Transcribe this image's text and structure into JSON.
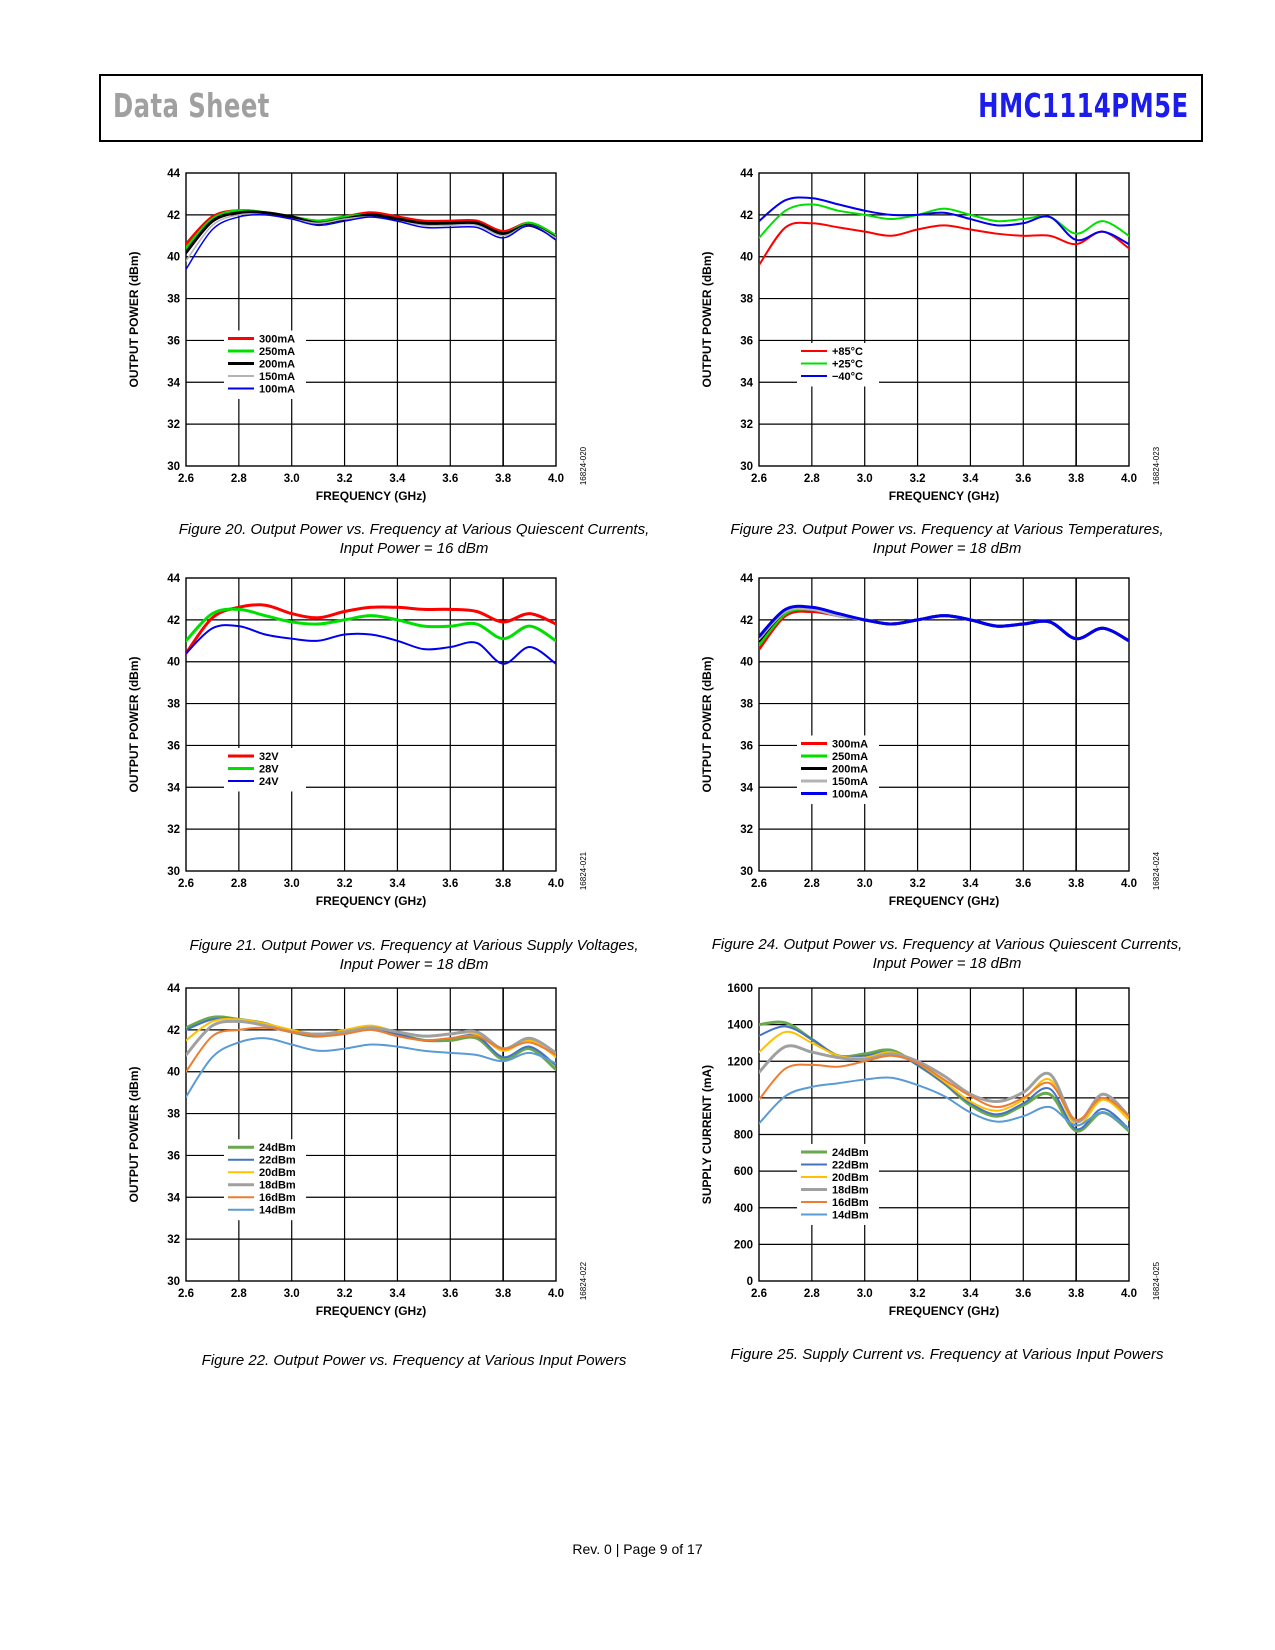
{
  "header": {
    "doc_type": "Data Sheet",
    "part_number": "HMC1114PM5E"
  },
  "footer": {
    "text": "Rev. 0 | Page 9 of 17"
  },
  "colors": {
    "part_number": "#1c1ced",
    "doc_type": "#a0a0a0"
  },
  "captions": {
    "fig20": [
      "Figure 20. Output Power vs. Frequency at Various Quiescent Currents,",
      "Input Power = 16 dBm"
    ],
    "fig21": [
      "Figure 21. Output Power vs. Frequency at Various Supply Voltages,",
      "Input Power = 18 dBm"
    ],
    "fig22": [
      "Figure 22. Output Power vs. Frequency at Various Input Powers"
    ],
    "fig23": [
      "Figure 23. Output Power vs. Frequency at Various Temperatures,",
      "Input Power = 18 dBm"
    ],
    "fig24": [
      "Figure 24. Output Power vs. Frequency at Various Quiescent Currents,",
      "Input Power = 18 dBm"
    ],
    "fig25": [
      "Figure 25. Supply Current vs. Frequency at Various Input Powers"
    ]
  },
  "chart_data": [
    {
      "id": "fig20",
      "type": "line",
      "figure_code": "16824-020",
      "xlabel": "FREQUENCY (GHz)",
      "ylabel": "OUTPUT POWER (dBm)",
      "xlim": [
        2.6,
        4.0
      ],
      "ylim": [
        30,
        44
      ],
      "xticks": [
        "2.6",
        "2.8",
        "3.0",
        "3.2",
        "3.4",
        "3.6",
        "3.8",
        "4.0"
      ],
      "yticks": [
        "30",
        "32",
        "34",
        "36",
        "38",
        "40",
        "42",
        "44"
      ],
      "legend_position": "lower-left",
      "x": [
        2.6,
        2.7,
        2.8,
        2.9,
        3.0,
        3.1,
        3.2,
        3.3,
        3.4,
        3.5,
        3.6,
        3.7,
        3.8,
        3.9,
        4.0
      ],
      "series": [
        {
          "name": "300mA",
          "color": "#ff0000",
          "width": 3,
          "values": [
            40.6,
            41.9,
            42.2,
            42.1,
            41.9,
            41.7,
            41.9,
            42.1,
            41.9,
            41.7,
            41.7,
            41.7,
            41.2,
            41.6,
            41.0
          ]
        },
        {
          "name": "250mA",
          "color": "#00e000",
          "width": 3,
          "values": [
            40.4,
            41.8,
            42.2,
            42.1,
            41.9,
            41.7,
            41.9,
            42.0,
            41.8,
            41.6,
            41.6,
            41.6,
            41.1,
            41.6,
            41.0
          ]
        },
        {
          "name": "200mA",
          "color": "#000000",
          "width": 3,
          "values": [
            40.2,
            41.7,
            42.1,
            42.1,
            41.9,
            41.6,
            41.8,
            42.0,
            41.8,
            41.6,
            41.6,
            41.6,
            41.1,
            41.5,
            40.9
          ]
        },
        {
          "name": "150mA",
          "color": "#b4b4b4",
          "width": 1.5,
          "values": [
            39.8,
            41.5,
            42.0,
            42.0,
            41.8,
            41.6,
            41.8,
            41.9,
            41.7,
            41.5,
            41.5,
            41.5,
            41.0,
            41.5,
            40.9
          ]
        },
        {
          "name": "100mA",
          "color": "#0000ee",
          "width": 1.5,
          "values": [
            39.4,
            41.3,
            41.9,
            42.0,
            41.8,
            41.5,
            41.7,
            41.9,
            41.7,
            41.4,
            41.4,
            41.4,
            40.9,
            41.5,
            40.8
          ]
        }
      ]
    },
    {
      "id": "fig21",
      "type": "line",
      "figure_code": "16824-021",
      "xlabel": "FREQUENCY (GHz)",
      "ylabel": "OUTPUT POWER (dBm)",
      "xlim": [
        2.6,
        4.0
      ],
      "ylim": [
        30,
        44
      ],
      "xticks": [
        "2.6",
        "2.8",
        "3.0",
        "3.2",
        "3.4",
        "3.6",
        "3.8",
        "4.0"
      ],
      "yticks": [
        "30",
        "32",
        "34",
        "36",
        "38",
        "40",
        "42",
        "44"
      ],
      "legend_position": "lower-left",
      "x": [
        2.6,
        2.7,
        2.8,
        2.9,
        3.0,
        3.1,
        3.2,
        3.3,
        3.4,
        3.5,
        3.6,
        3.7,
        3.8,
        3.9,
        4.0
      ],
      "series": [
        {
          "name": "32V",
          "color": "#ff0000",
          "width": 3,
          "values": [
            40.4,
            42.1,
            42.6,
            42.7,
            42.3,
            42.1,
            42.4,
            42.6,
            42.6,
            42.5,
            42.5,
            42.4,
            41.9,
            42.3,
            41.8
          ]
        },
        {
          "name": "28V",
          "color": "#00e000",
          "width": 3,
          "values": [
            41.0,
            42.3,
            42.5,
            42.2,
            41.9,
            41.8,
            42.0,
            42.2,
            42.0,
            41.7,
            41.7,
            41.8,
            41.1,
            41.7,
            41.0
          ]
        },
        {
          "name": "24V",
          "color": "#0000ee",
          "width": 2,
          "values": [
            40.4,
            41.6,
            41.7,
            41.3,
            41.1,
            41.0,
            41.3,
            41.3,
            41.0,
            40.6,
            40.7,
            40.9,
            39.9,
            40.7,
            39.9
          ]
        }
      ]
    },
    {
      "id": "fig22",
      "type": "line",
      "figure_code": "16824-022",
      "xlabel": "FREQUENCY (GHz)",
      "ylabel": "OUTPUT POWER (dBm)",
      "xlim": [
        2.6,
        4.0
      ],
      "ylim": [
        30,
        44
      ],
      "xticks": [
        "2.6",
        "2.8",
        "3.0",
        "3.2",
        "3.4",
        "3.6",
        "3.8",
        "4.0"
      ],
      "yticks": [
        "30",
        "32",
        "34",
        "36",
        "38",
        "40",
        "42",
        "44"
      ],
      "legend_position": "lower-left",
      "x": [
        2.6,
        2.7,
        2.8,
        2.9,
        3.0,
        3.1,
        3.2,
        3.3,
        3.4,
        3.5,
        3.6,
        3.7,
        3.8,
        3.9,
        4.0
      ],
      "series": [
        {
          "name": "24dBm",
          "color": "#6aa84f",
          "width": 3,
          "values": [
            42.1,
            42.6,
            42.5,
            42.3,
            41.9,
            41.7,
            41.9,
            42.1,
            41.8,
            41.5,
            41.5,
            41.6,
            40.6,
            41.1,
            40.1
          ]
        },
        {
          "name": "22dBm",
          "color": "#4472c4",
          "width": 2,
          "values": [
            42.0,
            42.5,
            42.5,
            42.3,
            41.9,
            41.7,
            41.9,
            42.1,
            41.8,
            41.5,
            41.6,
            41.7,
            40.7,
            41.2,
            40.3
          ]
        },
        {
          "name": "20dBm",
          "color": "#ffc000",
          "width": 2,
          "values": [
            41.5,
            42.4,
            42.5,
            42.3,
            42.0,
            41.8,
            42.0,
            42.2,
            41.9,
            41.7,
            41.8,
            41.8,
            41.0,
            41.5,
            40.7
          ]
        },
        {
          "name": "18dBm",
          "color": "#a0a0a0",
          "width": 3,
          "values": [
            40.8,
            42.2,
            42.4,
            42.2,
            41.9,
            41.8,
            41.9,
            42.1,
            41.9,
            41.7,
            41.8,
            41.9,
            41.1,
            41.6,
            40.9
          ]
        },
        {
          "name": "16dBm",
          "color": "#ed7d31",
          "width": 2,
          "values": [
            40.0,
            41.7,
            42.0,
            42.1,
            41.9,
            41.7,
            41.8,
            42.0,
            41.7,
            41.5,
            41.6,
            41.7,
            41.1,
            41.4,
            40.8
          ]
        },
        {
          "name": "14dBm",
          "color": "#5b9bd5",
          "width": 2,
          "values": [
            38.8,
            40.7,
            41.4,
            41.6,
            41.3,
            41.0,
            41.1,
            41.3,
            41.2,
            41.0,
            40.9,
            40.8,
            40.5,
            40.9,
            40.4
          ]
        }
      ]
    },
    {
      "id": "fig23",
      "type": "line",
      "figure_code": "16824-023",
      "xlabel": "FREQUENCY (GHz)",
      "ylabel": "OUTPUT POWER (dBm)",
      "xlim": [
        2.6,
        4.0
      ],
      "ylim": [
        30,
        44
      ],
      "xticks": [
        "2.6",
        "2.8",
        "3.0",
        "3.2",
        "3.4",
        "3.6",
        "3.8",
        "4.0"
      ],
      "yticks": [
        "30",
        "32",
        "34",
        "36",
        "38",
        "40",
        "42",
        "44"
      ],
      "legend_position": "lower-left",
      "x": [
        2.6,
        2.7,
        2.8,
        2.9,
        3.0,
        3.1,
        3.2,
        3.3,
        3.4,
        3.5,
        3.6,
        3.7,
        3.8,
        3.9,
        4.0
      ],
      "series": [
        {
          "name": "+85°C",
          "color": "#ff0000",
          "width": 2,
          "values": [
            39.6,
            41.4,
            41.6,
            41.4,
            41.2,
            41.0,
            41.3,
            41.5,
            41.3,
            41.1,
            41.0,
            41.0,
            40.6,
            41.2,
            40.4
          ]
        },
        {
          "name": "+25°C",
          "color": "#00e000",
          "width": 2,
          "values": [
            40.9,
            42.2,
            42.5,
            42.2,
            42.0,
            41.8,
            42.0,
            42.3,
            42.0,
            41.7,
            41.8,
            41.9,
            41.1,
            41.7,
            41.0
          ]
        },
        {
          "name": "−40°C",
          "color": "#0000ee",
          "width": 2,
          "values": [
            41.7,
            42.7,
            42.8,
            42.5,
            42.2,
            42.0,
            42.0,
            42.1,
            41.8,
            41.5,
            41.6,
            41.9,
            40.8,
            41.2,
            40.6
          ]
        }
      ]
    },
    {
      "id": "fig24",
      "type": "line",
      "figure_code": "16824-024",
      "xlabel": "FREQUENCY (GHz)",
      "ylabel": "OUTPUT POWER (dBm)",
      "xlim": [
        2.6,
        4.0
      ],
      "ylim": [
        30,
        44
      ],
      "xticks": [
        "2.6",
        "2.8",
        "3.0",
        "3.2",
        "3.4",
        "3.6",
        "3.8",
        "4.0"
      ],
      "yticks": [
        "30",
        "32",
        "34",
        "36",
        "38",
        "40",
        "42",
        "44"
      ],
      "legend_position": "lower-left",
      "x": [
        2.6,
        2.7,
        2.8,
        2.9,
        3.0,
        3.1,
        3.2,
        3.3,
        3.4,
        3.5,
        3.6,
        3.7,
        3.8,
        3.9,
        4.0
      ],
      "series": [
        {
          "name": "300mA",
          "color": "#ff0000",
          "width": 3,
          "values": [
            40.6,
            42.2,
            42.4,
            42.2,
            42.0,
            41.8,
            42.0,
            42.2,
            42.0,
            41.7,
            41.8,
            41.9,
            41.1,
            41.6,
            41.0
          ]
        },
        {
          "name": "250mA",
          "color": "#00e000",
          "width": 3,
          "values": [
            40.8,
            42.3,
            42.5,
            42.2,
            42.0,
            41.8,
            42.0,
            42.2,
            42.0,
            41.7,
            41.8,
            41.9,
            41.1,
            41.6,
            41.0
          ]
        },
        {
          "name": "200mA",
          "color": "#000000",
          "width": 3,
          "values": [
            41.0,
            42.4,
            42.5,
            42.2,
            42.0,
            41.8,
            42.0,
            42.2,
            42.0,
            41.7,
            41.8,
            41.9,
            41.1,
            41.6,
            41.0
          ]
        },
        {
          "name": "150mA",
          "color": "#b4b4b4",
          "width": 3,
          "values": [
            41.1,
            42.4,
            42.5,
            42.2,
            42.0,
            41.8,
            42.0,
            42.2,
            42.0,
            41.7,
            41.8,
            41.9,
            41.1,
            41.6,
            41.0
          ]
        },
        {
          "name": "100mA",
          "color": "#0000ee",
          "width": 3,
          "values": [
            41.2,
            42.5,
            42.6,
            42.3,
            42.0,
            41.8,
            42.0,
            42.2,
            42.0,
            41.7,
            41.8,
            41.9,
            41.1,
            41.6,
            41.0
          ]
        }
      ]
    },
    {
      "id": "fig25",
      "type": "line",
      "figure_code": "16824-025",
      "xlabel": "FREQUENCY (GHz)",
      "ylabel": "SUPPLY CURRENT (mA)",
      "xlim": [
        2.6,
        4.0
      ],
      "ylim": [
        0,
        1600
      ],
      "xticks": [
        "2.6",
        "2.8",
        "3.0",
        "3.2",
        "3.4",
        "3.6",
        "3.8",
        "4.0"
      ],
      "yticks": [
        "0",
        "200",
        "400",
        "600",
        "800",
        "1000",
        "1200",
        "1400",
        "1600"
      ],
      "legend_position": "lower-left",
      "x": [
        2.6,
        2.7,
        2.8,
        2.9,
        3.0,
        3.1,
        3.2,
        3.3,
        3.4,
        3.5,
        3.6,
        3.7,
        3.8,
        3.9,
        4.0
      ],
      "series": [
        {
          "name": "24dBm",
          "color": "#6aa84f",
          "width": 3,
          "values": [
            1400,
            1410,
            1320,
            1230,
            1240,
            1260,
            1180,
            1080,
            960,
            900,
            960,
            1020,
            820,
            920,
            820
          ]
        },
        {
          "name": "22dBm",
          "color": "#4472c4",
          "width": 2,
          "values": [
            1340,
            1390,
            1320,
            1230,
            1230,
            1250,
            1180,
            1080,
            970,
            910,
            970,
            1050,
            830,
            940,
            830
          ]
        },
        {
          "name": "20dBm",
          "color": "#ffc000",
          "width": 2,
          "values": [
            1250,
            1360,
            1300,
            1230,
            1220,
            1250,
            1190,
            1090,
            980,
            930,
            990,
            1100,
            850,
            990,
            880
          ]
        },
        {
          "name": "18dBm",
          "color": "#a0a0a0",
          "width": 3,
          "values": [
            1140,
            1280,
            1250,
            1220,
            1210,
            1240,
            1200,
            1120,
            1020,
            980,
            1030,
            1130,
            870,
            1020,
            900
          ]
        },
        {
          "name": "16dBm",
          "color": "#ed7d31",
          "width": 2,
          "values": [
            990,
            1160,
            1180,
            1170,
            1200,
            1230,
            1190,
            1100,
            1010,
            950,
            1000,
            1080,
            880,
            1000,
            900
          ]
        },
        {
          "name": "14dBm",
          "color": "#5b9bd5",
          "width": 2,
          "values": [
            860,
            1010,
            1060,
            1080,
            1100,
            1110,
            1070,
            1010,
            920,
            870,
            900,
            950,
            850,
            920,
            830
          ]
        }
      ]
    }
  ]
}
